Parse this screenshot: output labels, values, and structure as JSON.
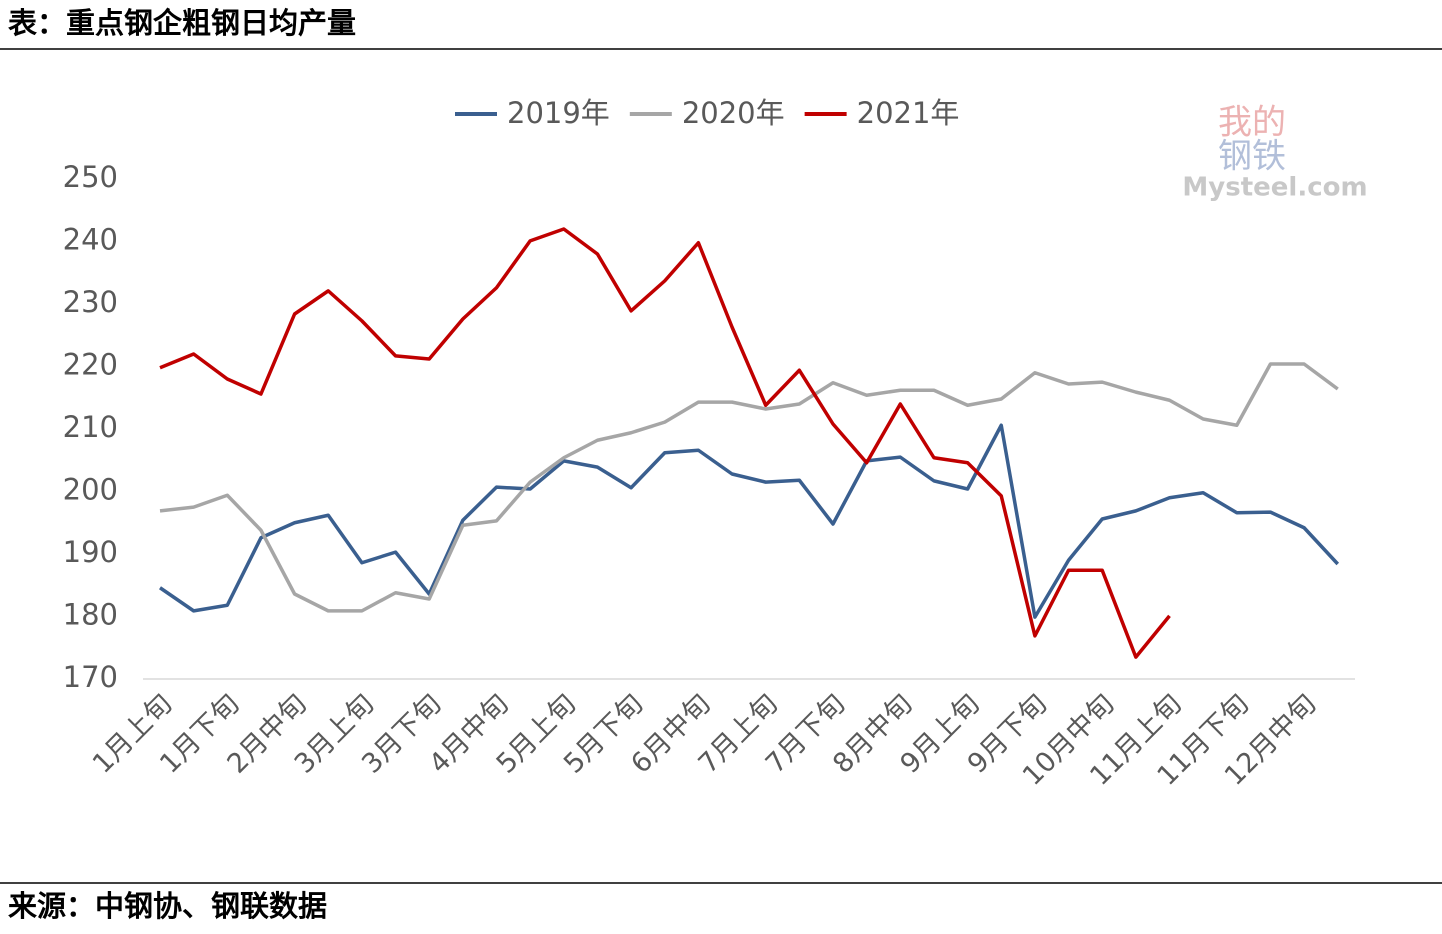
{
  "header": {
    "title": "表：重点钢企粗钢日均产量"
  },
  "footer": {
    "source": "来源：中钢协、钢联数据"
  },
  "watermark": {
    "line1": "我的",
    "line2": "钢铁",
    "line3": "Mysteel.com"
  },
  "chart_data": {
    "type": "line",
    "categories": [
      "1月上旬",
      null,
      "1月下旬",
      null,
      "2月中旬",
      null,
      "3月上旬",
      null,
      "3月下旬",
      null,
      "4月中旬",
      null,
      "5月上旬",
      null,
      "5月下旬",
      null,
      "6月中旬",
      null,
      "7月上旬",
      null,
      "7月下旬",
      null,
      "8月中旬",
      null,
      "9月上旬",
      null,
      "9月下旬",
      null,
      "10月中旬",
      null,
      "11月上旬",
      null,
      "11月下旬",
      null,
      "12月中旬",
      null
    ],
    "series": [
      {
        "name": "2019年",
        "color": "#3a5f8f",
        "values": [
          184.6,
          180.9,
          181.8,
          192.6,
          195,
          196.2,
          188.6,
          190.3,
          183.6,
          195.4,
          200.7,
          200.4,
          204.9,
          203.9,
          200.6,
          206.2,
          206.6,
          202.8,
          201.5,
          201.8,
          194.8,
          204.9,
          205.5,
          201.7,
          200.4,
          210.6,
          179.9,
          189,
          195.6,
          196.9,
          199,
          199.8,
          196.6,
          196.7,
          194.2,
          188.4
        ]
      },
      {
        "name": "2020年",
        "color": "#a6a6a6",
        "values": [
          196.9,
          197.5,
          199.4,
          193.8,
          183.6,
          180.9,
          180.9,
          183.8,
          182.8,
          194.6,
          195.3,
          201.5,
          205.4,
          208.2,
          209.4,
          211.1,
          214.3,
          214.3,
          213.2,
          214,
          217.4,
          215.4,
          216.2,
          216.2,
          213.8,
          214.8,
          219,
          217.2,
          217.5,
          215.9,
          214.6,
          211.6,
          210.6,
          220.4,
          220.4,
          216.4
        ]
      },
      {
        "name": "2021年",
        "color": "#c00000",
        "values": [
          219.8,
          222,
          218,
          215.6,
          228.4,
          232.1,
          227.3,
          221.7,
          221.2,
          227.6,
          232.6,
          240.1,
          242,
          238,
          228.9,
          233.7,
          239.8,
          226.3,
          213.8,
          219.4,
          210.8,
          204.6,
          214,
          205.4,
          204.6,
          199.3,
          176.9,
          187.4,
          187.4,
          173.5,
          180.1,
          null,
          null,
          null,
          null,
          null
        ]
      }
    ],
    "ylim": [
      170,
      250
    ],
    "yticks": [
      170,
      180,
      190,
      200,
      210,
      220,
      230,
      240,
      250
    ],
    "grid": false,
    "legend": "top"
  }
}
